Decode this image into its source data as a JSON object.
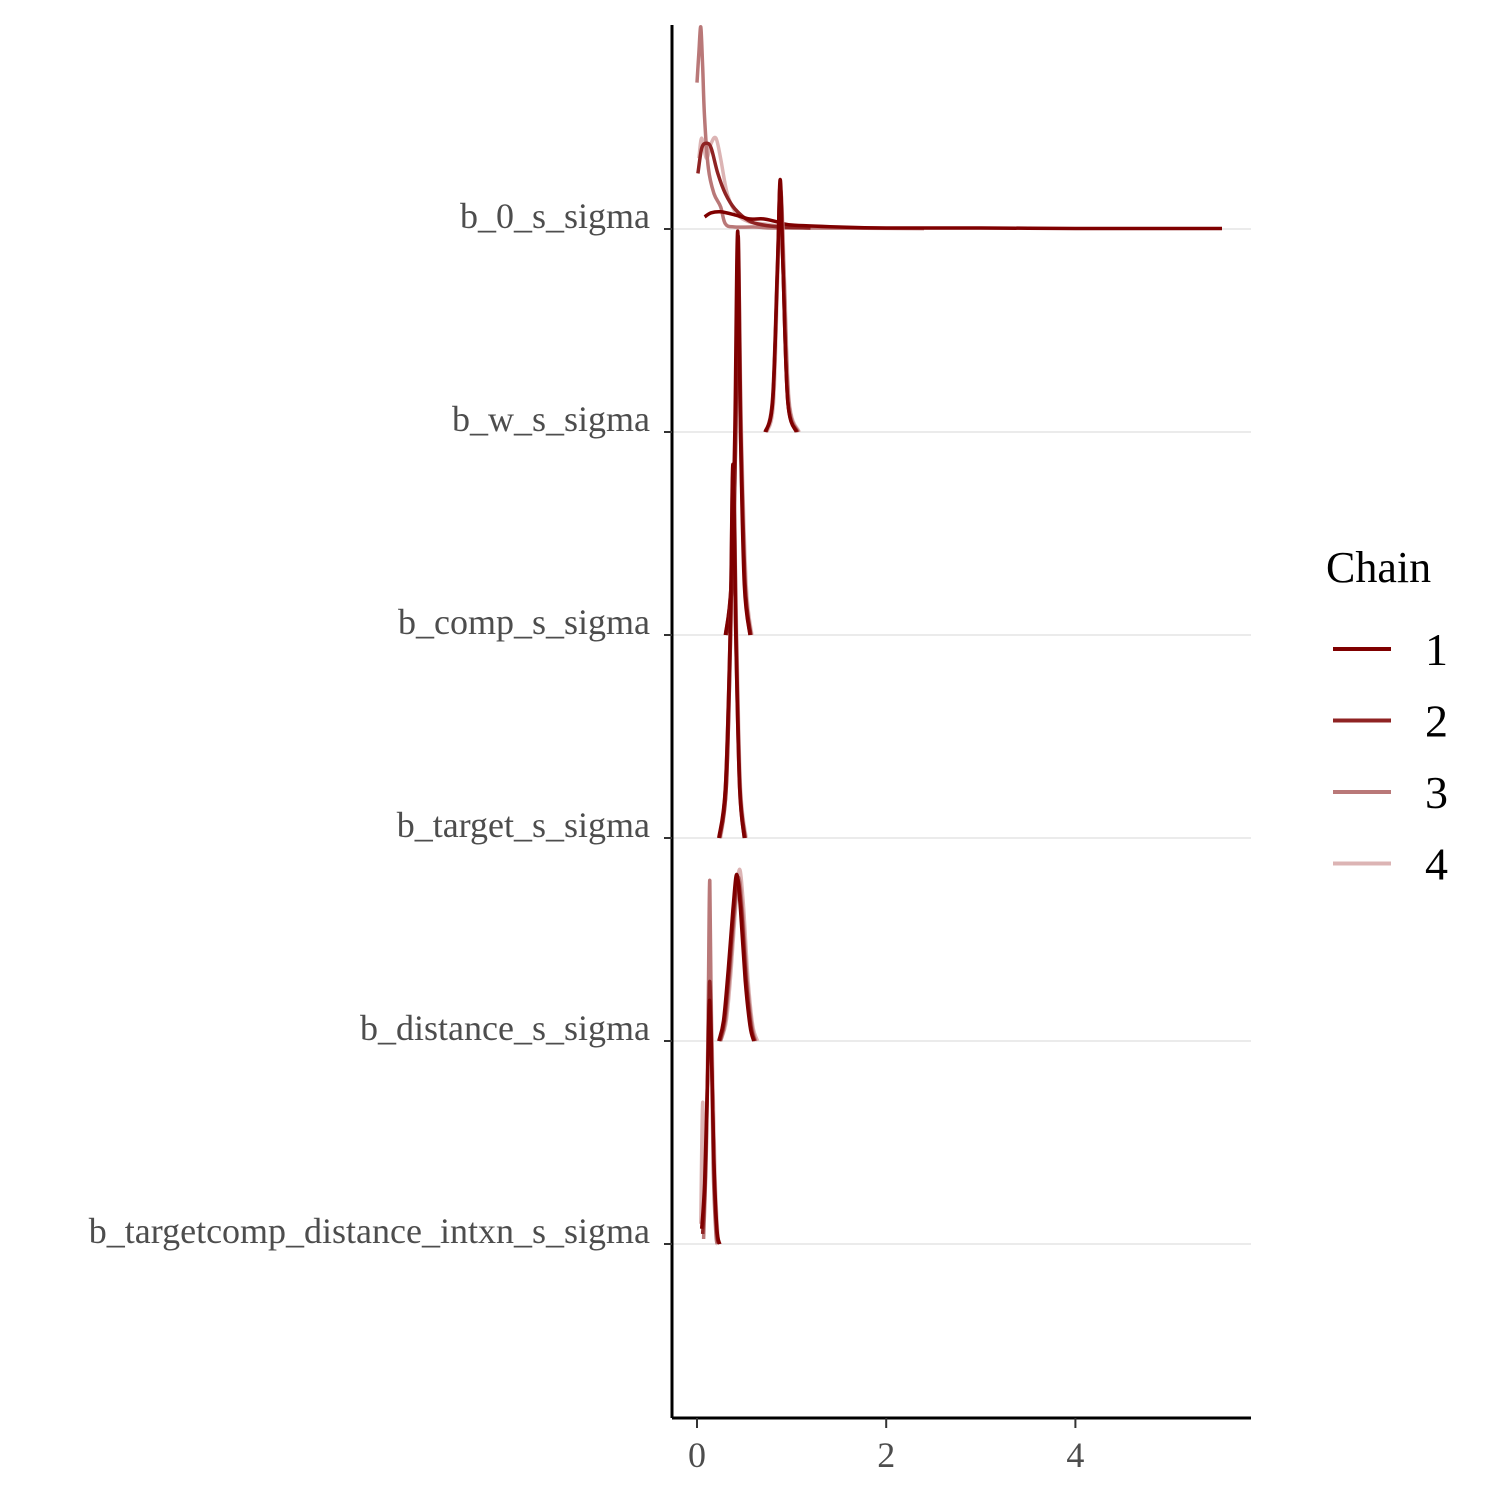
{
  "chart_data": {
    "type": "ridgeline-density",
    "xlim": [
      -0.25,
      5.8
    ],
    "x_ticks": [
      0,
      2,
      4
    ],
    "grid": "horizontal baselines only",
    "legend_position": "right",
    "legend": {
      "title": "Chain",
      "entries": [
        {
          "label": "1",
          "color": "#7f0000"
        },
        {
          "label": "2",
          "color": "#8f2323"
        },
        {
          "label": "3",
          "color": "#b97878"
        },
        {
          "label": "4",
          "color": "#dcb4b4"
        }
      ]
    },
    "parameters": [
      {
        "label": "b_0_s_sigma",
        "densities": [
          {
            "chain": "1",
            "points": [
              [
                0.08,
                0.12
              ],
              [
                0.15,
                0.16
              ],
              [
                0.25,
                0.17
              ],
              [
                0.4,
                0.14
              ],
              [
                0.55,
                0.1
              ],
              [
                0.7,
                0.1
              ],
              [
                0.85,
                0.07
              ],
              [
                1.0,
                0.04
              ],
              [
                1.5,
                0.02
              ],
              [
                2.0,
                0.01
              ],
              [
                3.0,
                0.01
              ],
              [
                4.0,
                0.005
              ],
              [
                5.0,
                0.005
              ],
              [
                5.55,
                0.005
              ]
            ]
          },
          {
            "chain": "2",
            "points": [
              [
                0.01,
                0.55
              ],
              [
                0.05,
                0.8
              ],
              [
                0.1,
                0.85
              ],
              [
                0.15,
                0.8
              ],
              [
                0.22,
                0.55
              ],
              [
                0.3,
                0.35
              ],
              [
                0.4,
                0.2
              ],
              [
                0.55,
                0.08
              ],
              [
                0.7,
                0.04
              ],
              [
                0.9,
                0.02
              ],
              [
                1.2,
                0.01
              ]
            ]
          },
          {
            "chain": "3",
            "points": [
              [
                0.0,
                1.45
              ],
              [
                0.02,
                1.75
              ],
              [
                0.04,
                2.0
              ],
              [
                0.06,
                1.6
              ],
              [
                0.08,
                1.1
              ],
              [
                0.12,
                0.6
              ],
              [
                0.18,
                0.35
              ],
              [
                0.25,
                0.22
              ],
              [
                0.3,
                0.05
              ],
              [
                0.4,
                0.02
              ],
              [
                0.6,
                0.02
              ],
              [
                0.8,
                0.01
              ],
              [
                1.2,
                0.01
              ],
              [
                2.4,
                0.005
              ]
            ]
          },
          {
            "chain": "4",
            "points": [
              [
                0.02,
                0.7
              ],
              [
                0.05,
                0.9
              ],
              [
                0.1,
                0.7
              ],
              [
                0.15,
                0.85
              ],
              [
                0.2,
                0.9
              ],
              [
                0.25,
                0.7
              ],
              [
                0.32,
                0.35
              ],
              [
                0.42,
                0.15
              ],
              [
                0.55,
                0.07
              ],
              [
                0.7,
                0.05
              ],
              [
                1.0,
                0.02
              ],
              [
                1.6,
                0.01
              ],
              [
                2.4,
                0.005
              ]
            ]
          }
        ]
      },
      {
        "label": "b_w_s_sigma",
        "densities": [
          {
            "chain": "1",
            "points": [
              [
                0.72,
                0
              ],
              [
                0.8,
                0.3
              ],
              [
                0.85,
                1.6
              ],
              [
                0.88,
                2.5
              ],
              [
                0.91,
                1.6
              ],
              [
                0.96,
                0.3
              ],
              [
                1.05,
                0
              ]
            ]
          },
          {
            "chain": "2",
            "points": [
              [
                0.73,
                0
              ],
              [
                0.8,
                0.35
              ],
              [
                0.85,
                1.65
              ],
              [
                0.88,
                2.45
              ],
              [
                0.91,
                1.6
              ],
              [
                0.96,
                0.3
              ],
              [
                1.06,
                0
              ]
            ]
          },
          {
            "chain": "3",
            "points": [
              [
                0.73,
                0
              ],
              [
                0.8,
                0.3
              ],
              [
                0.85,
                1.55
              ],
              [
                0.885,
                2.4
              ],
              [
                0.92,
                1.55
              ],
              [
                0.97,
                0.3
              ],
              [
                1.07,
                0
              ]
            ]
          },
          {
            "chain": "4",
            "points": [
              [
                0.74,
                0
              ],
              [
                0.81,
                0.3
              ],
              [
                0.855,
                1.6
              ],
              [
                0.89,
                2.35
              ],
              [
                0.925,
                1.5
              ],
              [
                0.975,
                0.3
              ],
              [
                1.08,
                0
              ]
            ]
          }
        ]
      },
      {
        "label": "b_comp_s_sigma",
        "densities": [
          {
            "chain": "1",
            "points": [
              [
                0.3,
                0
              ],
              [
                0.36,
                0.5
              ],
              [
                0.4,
                2.0
              ],
              [
                0.43,
                4.0
              ],
              [
                0.46,
                2.0
              ],
              [
                0.5,
                0.5
              ],
              [
                0.56,
                0
              ]
            ]
          },
          {
            "chain": "2",
            "points": [
              [
                0.31,
                0
              ],
              [
                0.37,
                0.5
              ],
              [
                0.41,
                2.0
              ],
              [
                0.435,
                3.95
              ],
              [
                0.465,
                2.0
              ],
              [
                0.51,
                0.5
              ],
              [
                0.57,
                0
              ]
            ]
          },
          {
            "chain": "3",
            "points": [
              [
                0.3,
                0
              ],
              [
                0.36,
                0.5
              ],
              [
                0.405,
                2.0
              ],
              [
                0.43,
                3.85
              ],
              [
                0.46,
                2.0
              ],
              [
                0.505,
                0.5
              ],
              [
                0.56,
                0
              ]
            ]
          },
          {
            "chain": "4",
            "points": [
              [
                0.31,
                0
              ],
              [
                0.37,
                0.5
              ],
              [
                0.41,
                2.0
              ],
              [
                0.435,
                3.8
              ],
              [
                0.47,
                2.0
              ],
              [
                0.52,
                0.5
              ],
              [
                0.58,
                0
              ]
            ]
          }
        ]
      },
      {
        "label": "b_target_s_sigma",
        "densities": [
          {
            "chain": "1",
            "points": [
              [
                0.23,
                0
              ],
              [
                0.3,
                0.5
              ],
              [
                0.35,
                2.0
              ],
              [
                0.38,
                3.7
              ],
              [
                0.41,
                2.0
              ],
              [
                0.45,
                0.5
              ],
              [
                0.5,
                0
              ]
            ]
          },
          {
            "chain": "2",
            "points": [
              [
                0.24,
                0
              ],
              [
                0.31,
                0.5
              ],
              [
                0.355,
                2.0
              ],
              [
                0.385,
                3.65
              ],
              [
                0.415,
                2.0
              ],
              [
                0.455,
                0.5
              ],
              [
                0.51,
                0
              ]
            ]
          },
          {
            "chain": "3",
            "points": [
              [
                0.24,
                0
              ],
              [
                0.3,
                0.5
              ],
              [
                0.35,
                2.0
              ],
              [
                0.38,
                3.6
              ],
              [
                0.41,
                2.0
              ],
              [
                0.45,
                0.5
              ],
              [
                0.5,
                0
              ]
            ]
          },
          {
            "chain": "4",
            "points": [
              [
                0.25,
                0
              ],
              [
                0.31,
                0.5
              ],
              [
                0.355,
                2.0
              ],
              [
                0.385,
                3.55
              ],
              [
                0.42,
                2.0
              ],
              [
                0.46,
                0.5
              ],
              [
                0.52,
                0
              ]
            ]
          }
        ]
      },
      {
        "label": "b_distance_s_sigma",
        "densities": [
          {
            "chain": "1",
            "points": [
              [
                0.23,
                0
              ],
              [
                0.28,
                0.2
              ],
              [
                0.33,
                0.7
              ],
              [
                0.38,
                1.3
              ],
              [
                0.42,
                1.65
              ],
              [
                0.46,
                1.3
              ],
              [
                0.51,
                0.6
              ],
              [
                0.56,
                0.15
              ],
              [
                0.6,
                0
              ]
            ]
          },
          {
            "chain": "2",
            "points": [
              [
                0.24,
                0
              ],
              [
                0.29,
                0.2
              ],
              [
                0.34,
                0.7
              ],
              [
                0.39,
                1.3
              ],
              [
                0.43,
                1.6
              ],
              [
                0.47,
                1.3
              ],
              [
                0.52,
                0.6
              ],
              [
                0.57,
                0.15
              ],
              [
                0.61,
                0
              ]
            ]
          },
          {
            "chain": "3",
            "points": [
              [
                0.25,
                0
              ],
              [
                0.3,
                0.2
              ],
              [
                0.35,
                0.7
              ],
              [
                0.4,
                1.3
              ],
              [
                0.44,
                1.62
              ],
              [
                0.48,
                1.3
              ],
              [
                0.53,
                0.6
              ],
              [
                0.58,
                0.15
              ],
              [
                0.62,
                0
              ]
            ]
          },
          {
            "chain": "4",
            "points": [
              [
                0.25,
                0
              ],
              [
                0.31,
                0.2
              ],
              [
                0.36,
                0.7
              ],
              [
                0.41,
                1.35
              ],
              [
                0.45,
                1.7
              ],
              [
                0.49,
                1.35
              ],
              [
                0.54,
                0.6
              ],
              [
                0.59,
                0.15
              ],
              [
                0.64,
                0
              ]
            ]
          }
        ]
      },
      {
        "label": "b_targetcomp_distance_intxn_s_sigma",
        "densities": [
          {
            "chain": "1",
            "points": [
              [
                0.05,
                0.15
              ],
              [
                0.08,
                0.6
              ],
              [
                0.11,
                1.6
              ],
              [
                0.13,
                2.4
              ],
              [
                0.15,
                2.0
              ],
              [
                0.18,
                0.8
              ],
              [
                0.21,
                0.15
              ],
              [
                0.24,
                0
              ]
            ]
          },
          {
            "chain": "2",
            "points": [
              [
                0.06,
                0.1
              ],
              [
                0.09,
                0.7
              ],
              [
                0.12,
                2.0
              ],
              [
                0.135,
                2.6
              ],
              [
                0.155,
                1.9
              ],
              [
                0.18,
                0.7
              ],
              [
                0.21,
                0.1
              ],
              [
                0.24,
                0
              ]
            ]
          },
          {
            "chain": "3",
            "points": [
              [
                0.07,
                0.05
              ],
              [
                0.1,
                1.0
              ],
              [
                0.12,
                2.5
              ],
              [
                0.135,
                3.6
              ],
              [
                0.15,
                2.3
              ],
              [
                0.17,
                0.8
              ],
              [
                0.2,
                0.1
              ],
              [
                0.22,
                0
              ]
            ]
          },
          {
            "chain": "4",
            "points": [
              [
                0.04,
                0.2
              ],
              [
                0.06,
                1.4
              ],
              [
                0.08,
                0.6
              ],
              [
                0.11,
                1.6
              ],
              [
                0.14,
                2.6
              ],
              [
                0.16,
                2.0
              ],
              [
                0.19,
                0.7
              ],
              [
                0.22,
                0.1
              ],
              [
                0.24,
                0
              ]
            ]
          }
        ]
      }
    ]
  }
}
